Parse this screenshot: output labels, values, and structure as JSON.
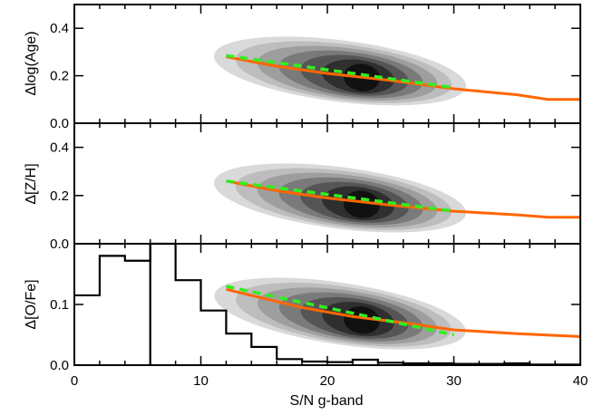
{
  "figure": {
    "xlabel": "S/N g-band",
    "x_ticks": [
      0,
      10,
      20,
      30,
      40
    ],
    "x_tick_labels": [
      "0",
      "10",
      "20",
      "30",
      "40"
    ],
    "xlim": [
      0,
      40
    ]
  },
  "colors": {
    "fit_line": "#ff6600",
    "dashed_fit": "#33ee22",
    "density_levels": [
      "#d9d9d9",
      "#bdbdbd",
      "#9e9e9e",
      "#7a7a7a",
      "#555555",
      "#2f2f2f",
      "#111111"
    ],
    "histogram": "#000000"
  },
  "chart_data": [
    {
      "type": "line",
      "ylabel": "Δlog(Age)",
      "ylim": [
        0,
        0.5
      ],
      "y_ticks": [
        0.0,
        0.2,
        0.4
      ],
      "y_tick_labels": [
        "0.0",
        "0.2",
        "0.4"
      ],
      "series": [
        {
          "style": "solid",
          "color": "#ff6600",
          "x": [
            12,
            16,
            20,
            25,
            30,
            35,
            37.5,
            40
          ],
          "y": [
            0.28,
            0.24,
            0.21,
            0.18,
            0.145,
            0.12,
            0.1,
            0.1
          ]
        },
        {
          "style": "dashed",
          "color": "#33ee22",
          "x": [
            12,
            30
          ],
          "y": [
            0.285,
            0.15
          ]
        }
      ],
      "density": {
        "center_x": 21,
        "center_y": 0.22,
        "levels": 7
      }
    },
    {
      "type": "line",
      "ylabel": "Δ[Z/H]",
      "ylim": [
        0,
        0.5
      ],
      "y_ticks": [
        0.0,
        0.2,
        0.4
      ],
      "y_tick_labels": [
        "0.0",
        "0.2",
        "0.4"
      ],
      "series": [
        {
          "style": "solid",
          "color": "#ff6600",
          "x": [
            12,
            16,
            20,
            25,
            30,
            35,
            37.5,
            40
          ],
          "y": [
            0.26,
            0.22,
            0.19,
            0.16,
            0.135,
            0.12,
            0.11,
            0.11
          ]
        },
        {
          "style": "dashed",
          "color": "#33ee22",
          "x": [
            12,
            30
          ],
          "y": [
            0.26,
            0.135
          ]
        }
      ],
      "density": {
        "center_x": 21,
        "center_y": 0.19,
        "levels": 7
      }
    },
    {
      "type": "line",
      "ylabel": "Δ[O/Fe]",
      "ylim": [
        0,
        0.2
      ],
      "y_ticks": [
        0.0,
        0.1
      ],
      "y_tick_labels": [
        "0.0",
        "0.1"
      ],
      "series": [
        {
          "style": "solid",
          "color": "#ff6600",
          "x": [
            12,
            18,
            22,
            26,
            30,
            35,
            40
          ],
          "y": [
            0.125,
            0.095,
            0.08,
            0.07,
            0.058,
            0.052,
            0.047
          ]
        },
        {
          "style": "dashed",
          "color": "#33ee22",
          "x": [
            12,
            30
          ],
          "y": [
            0.13,
            0.05
          ]
        }
      ],
      "density": {
        "center_x": 21,
        "center_y": 0.085,
        "levels": 7
      },
      "histogram": {
        "bin_edges": [
          0,
          2,
          4,
          6,
          8,
          10,
          12,
          14,
          16,
          18,
          20,
          22,
          24,
          26,
          28,
          30,
          32,
          34,
          36,
          38,
          40
        ],
        "heights": [
          0.115,
          0.18,
          0.172,
          0.2,
          0.14,
          0.09,
          0.052,
          0.03,
          0.01,
          0.006,
          0.005,
          0.009,
          0.004,
          0.003,
          0.003,
          0.002,
          0.002,
          0.003,
          0.001,
          0.001
        ],
        "visible_range": [
          0,
          0.2
        ]
      }
    }
  ]
}
